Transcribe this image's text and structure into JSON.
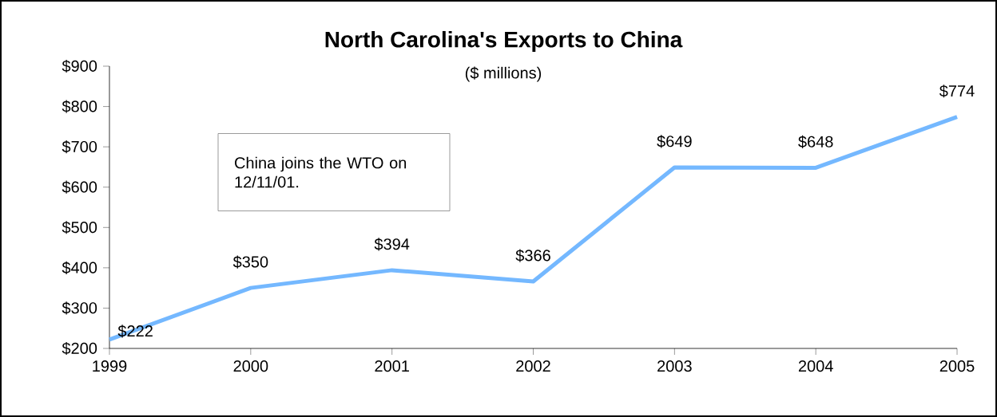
{
  "chart_data": {
    "type": "line",
    "title": "North Carolina's Exports to China",
    "subtitle": "($ millions)",
    "categories": [
      "1999",
      "2000",
      "2001",
      "2002",
      "2003",
      "2004",
      "2005"
    ],
    "values": [
      222,
      350,
      394,
      366,
      649,
      648,
      774
    ],
    "value_labels": [
      "$222",
      "$350",
      "$394",
      "$366",
      "$649",
      "$648",
      "$774"
    ],
    "color": "#74b8ff",
    "ylim": [
      200,
      900
    ],
    "yticks": [
      {
        "value": 200,
        "label": "$200"
      },
      {
        "value": 300,
        "label": "$300"
      },
      {
        "value": 400,
        "label": "$400"
      },
      {
        "value": 500,
        "label": "$500"
      },
      {
        "value": 600,
        "label": "$600"
      },
      {
        "value": 700,
        "label": "$700"
      },
      {
        "value": 800,
        "label": "$800"
      },
      {
        "value": 900,
        "label": "$900"
      }
    ],
    "annotations": [
      "China joins the WTO on 12/11/01."
    ]
  }
}
